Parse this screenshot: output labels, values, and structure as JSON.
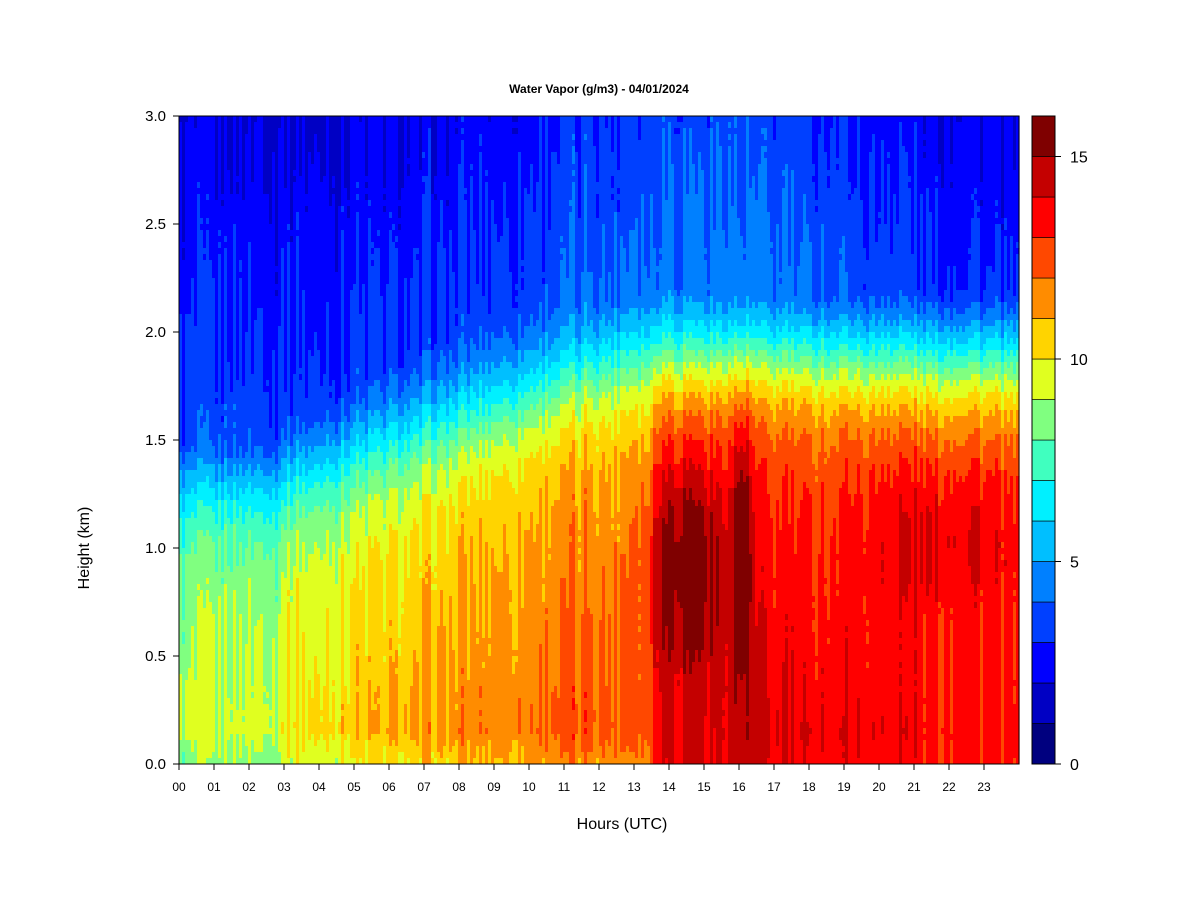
{
  "chart_data": {
    "type": "heatmap",
    "title": "Water Vapor (g/m3) - 04/01/2024",
    "xlabel": "Hours (UTC)",
    "ylabel": "Height (km)",
    "x_ticks": [
      "00",
      "01",
      "02",
      "03",
      "04",
      "05",
      "06",
      "07",
      "08",
      "09",
      "10",
      "11",
      "12",
      "13",
      "14",
      "15",
      "16",
      "17",
      "18",
      "19",
      "20",
      "21",
      "22",
      "23"
    ],
    "y_ticks": [
      "0.0",
      "0.5",
      "1.0",
      "1.5",
      "2.0",
      "2.5",
      "3.0"
    ],
    "xlim": [
      0,
      24
    ],
    "ylim": [
      0,
      3
    ],
    "colorbar": {
      "min": 0,
      "max": 16,
      "step": 1,
      "tick_values": [
        0,
        5,
        10,
        15
      ],
      "tick_labels": [
        "0",
        "5",
        "10",
        "15"
      ],
      "colors": [
        "#00007f",
        "#0000c4",
        "#0000ff",
        "#0040ff",
        "#0080ff",
        "#00bfff",
        "#00f0ff",
        "#40ffbf",
        "#80ff80",
        "#e0ff20",
        "#ffd400",
        "#ff8c00",
        "#ff4800",
        "#ff0000",
        "#c40000",
        "#7f0000"
      ]
    },
    "grid": false
  }
}
